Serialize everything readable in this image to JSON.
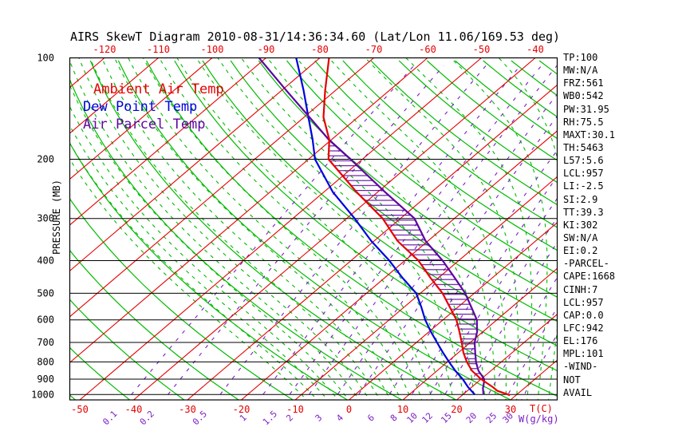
{
  "title": "AIRS SkewT Diagram 2010-08-31/14:36:34.60 (Lat/Lon 11.06/169.53 deg)",
  "colors": {
    "ambient": "#e60000",
    "dew": "#0000e0",
    "parcel": "#5c06a0",
    "isotherm": "#e60000",
    "adiabat": "#00bb00",
    "mixing": "#7a1ec4",
    "frame": "#000000"
  },
  "legend": {
    "items": [
      {
        "label": "Ambient Air Temp",
        "color_key": "ambient"
      },
      {
        "label": "Dew Point Temp",
        "color_key": "dew"
      },
      {
        "label": "Air Parcel Temp",
        "color_key": "parcel"
      }
    ]
  },
  "axes": {
    "pressure": {
      "label": "PRESSURE (MB)",
      "ticks": [
        100,
        200,
        300,
        400,
        500,
        600,
        700,
        800,
        900,
        1000
      ]
    },
    "temp_top": {
      "ticks": [
        -120,
        -110,
        -100,
        -90,
        -80,
        -70,
        -60,
        -50,
        -40
      ]
    },
    "temp_bottom": {
      "ticks": [
        -50,
        -40,
        -30,
        -20,
        -10,
        0,
        10,
        20,
        30
      ]
    },
    "temp_unit_label": "T(C)",
    "mixing_ratio": {
      "label": "W(g/kg)",
      "ticks": [
        0.1,
        0.2,
        0.5,
        1,
        1.5,
        2,
        3,
        4,
        6,
        8,
        10,
        12,
        15,
        20,
        25,
        30
      ]
    }
  },
  "stats_panel": {
    "items": [
      "TP:100",
      "MW:N/A",
      "FRZ:561",
      "WB0:542",
      "PW:31.95",
      "RH:75.5",
      "MAXT:30.1",
      "TH:5463",
      "L57:5.6",
      "LCL:957",
      "LI:-2.5",
      "SI:2.9",
      "TT:39.3",
      "KI:302",
      "SW:N/A",
      "EI:0.2",
      "-PARCEL-",
      "CAPE:1668",
      "CINH:7",
      "LCL:957",
      "CAP:0.0",
      "LFC:942",
      "EL:176",
      "MPL:101",
      "-WIND-",
      "NOT",
      "AVAIL"
    ]
  },
  "chart_data": {
    "type": "line",
    "title": "AIRS SkewT Diagram 2010-08-31/14:36:34.60 (Lat/Lon 11.06/169.53 deg)",
    "xlabel": "T(C)",
    "ylabel": "PRESSURE (MB)",
    "x_range_at_surface_c": [
      -52,
      39
    ],
    "pressure_range_mb": [
      100,
      1040
    ],
    "pressure_scale": "log",
    "skewed": true,
    "grids": {
      "isotherms_c": {
        "min": -130,
        "max": 40,
        "step": 10
      },
      "dry_adiabats_k": {
        "min": 220,
        "max": 460,
        "step": 10
      },
      "moist_adiabats_c": {
        "min": -10,
        "max": 36,
        "step": 2
      },
      "mixing_ratio_g_kg": [
        0.1,
        0.2,
        0.5,
        1,
        1.5,
        2,
        3,
        4,
        6,
        8,
        10,
        12,
        15,
        20,
        25,
        30
      ]
    },
    "series": [
      {
        "name": "Ambient Air Temp",
        "color_key": "ambient",
        "points": [
          [
            100,
            -78.3
          ],
          [
            125,
            -71.9
          ],
          [
            150,
            -66.4
          ],
          [
            175,
            -60.4
          ],
          [
            200,
            -56.3
          ],
          [
            250,
            -44.0
          ],
          [
            300,
            -33.3
          ],
          [
            350,
            -25.6
          ],
          [
            400,
            -17.5
          ],
          [
            450,
            -11.5
          ],
          [
            500,
            -5.9
          ],
          [
            550,
            -1.5
          ],
          [
            600,
            2.5
          ],
          [
            650,
            5.6
          ],
          [
            700,
            8.4
          ],
          [
            750,
            10.9
          ],
          [
            800,
            13.6
          ],
          [
            850,
            16.5
          ],
          [
            900,
            20.0
          ],
          [
            950,
            23.9
          ],
          [
            975,
            25.6
          ],
          [
            1000,
            28.4
          ],
          [
            1005,
            28.9
          ]
        ]
      },
      {
        "name": "Dew Point Temp",
        "color_key": "dew",
        "points": [
          [
            100,
            -84.4
          ],
          [
            125,
            -75.9
          ],
          [
            150,
            -69.2
          ],
          [
            175,
            -63.5
          ],
          [
            200,
            -58.8
          ],
          [
            250,
            -48.4
          ],
          [
            300,
            -38.5
          ],
          [
            350,
            -30.5
          ],
          [
            400,
            -22.9
          ],
          [
            450,
            -16.7
          ],
          [
            500,
            -10.8
          ],
          [
            550,
            -6.8
          ],
          [
            600,
            -3.3
          ],
          [
            650,
            0.3
          ],
          [
            700,
            3.8
          ],
          [
            750,
            7.1
          ],
          [
            800,
            10.3
          ],
          [
            850,
            13.4
          ],
          [
            900,
            16.6
          ],
          [
            950,
            19.3
          ],
          [
            1000,
            22.2
          ]
        ]
      },
      {
        "name": "Air Parcel Temp",
        "color_key": "parcel",
        "points": [
          [
            100,
            -91.3
          ],
          [
            125,
            -79.1
          ],
          [
            150,
            -69.0
          ],
          [
            175,
            -60.5
          ],
          [
            200,
            -52.2
          ],
          [
            250,
            -38.7
          ],
          [
            300,
            -27.4
          ],
          [
            350,
            -20.4
          ],
          [
            400,
            -13.0
          ],
          [
            450,
            -7.0
          ],
          [
            500,
            -1.7
          ],
          [
            550,
            2.5
          ],
          [
            600,
            6.3
          ],
          [
            650,
            8.9
          ],
          [
            700,
            10.8
          ],
          [
            750,
            13.1
          ],
          [
            800,
            15.3
          ],
          [
            850,
            17.7
          ],
          [
            900,
            20.6
          ],
          [
            942,
            21.9
          ],
          [
            957,
            22.3
          ],
          [
            1000,
            23.8
          ]
        ]
      }
    ],
    "cape_hatch": {
      "between": [
        "Ambient Air Temp",
        "Air Parcel Temp"
      ],
      "p_top": 176,
      "p_bottom": 950
    },
    "indices": {
      "CAPE": 1668,
      "CINH": 7,
      "LCL": 957,
      "LFC": 942,
      "EL": 176
    }
  }
}
